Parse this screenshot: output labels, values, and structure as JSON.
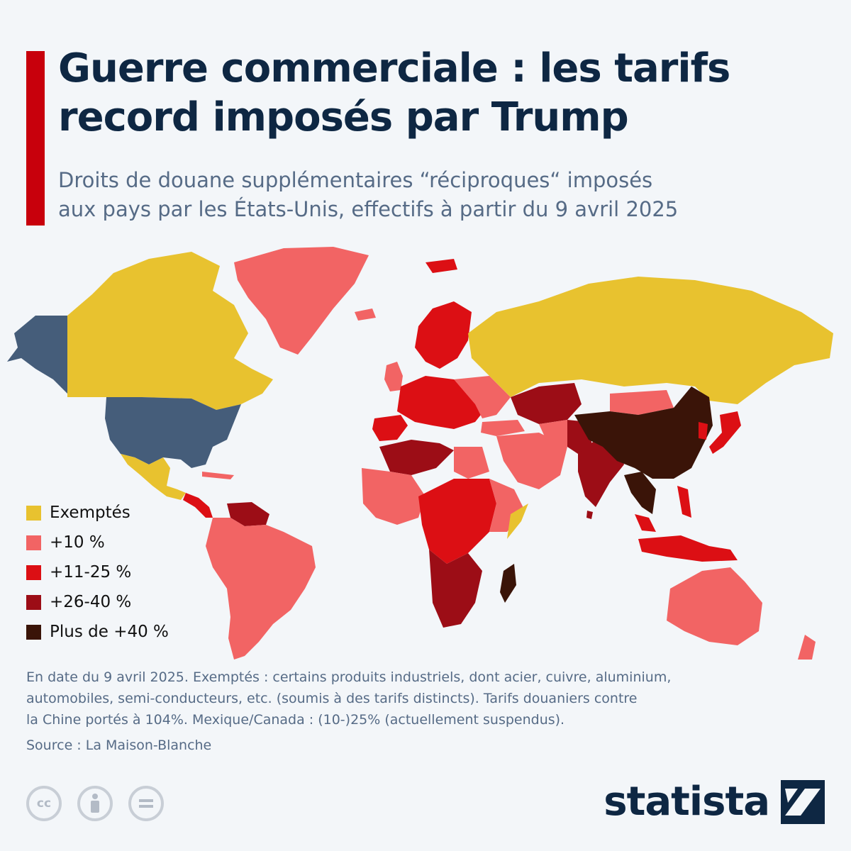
{
  "title": {
    "line1": "Guerre commerciale : les tarifs",
    "line2": "record imposés par Trump"
  },
  "subtitle": {
    "line1": "Droits de douane supplémentaires “réciproques“ imposés",
    "line2": "aux pays par les États-Unis, effectifs à partir du 9 avril 2025"
  },
  "legend": [
    {
      "label": "Exemptés",
      "color": "#e8c22f"
    },
    {
      "label": "+10 %",
      "color": "#f26464"
    },
    {
      "label": "+11-25 %",
      "color": "#dc0f14"
    },
    {
      "label": "+26-40 %",
      "color": "#9c0d16"
    },
    {
      "label": "Plus de +40 %",
      "color": "#3a1408"
    }
  ],
  "colors": {
    "united_states": "#455d7a",
    "accent": "#c8000c",
    "title": "#0e2743",
    "text_muted": "#566b86",
    "background": "#f3f6f9"
  },
  "notes": {
    "line1": "En date du 9 avril 2025. Exemptés : certains produits industriels, dont acier, cuivre, aluminium,",
    "line2": "automobiles, semi-conducteurs, etc. (soumis à des tarifs distincts). Tarifs douaniers contre",
    "line3": "la Chine portés à 104%. Mexique/Canada : (10-)25% (actuellement suspendus)."
  },
  "source": "Source : La Maison-Blanche",
  "license_icons": [
    "cc-icon",
    "attribution-icon",
    "no-derivatives-icon"
  ],
  "brand": {
    "name": "statista",
    "logo": "statista-logo-icon"
  }
}
